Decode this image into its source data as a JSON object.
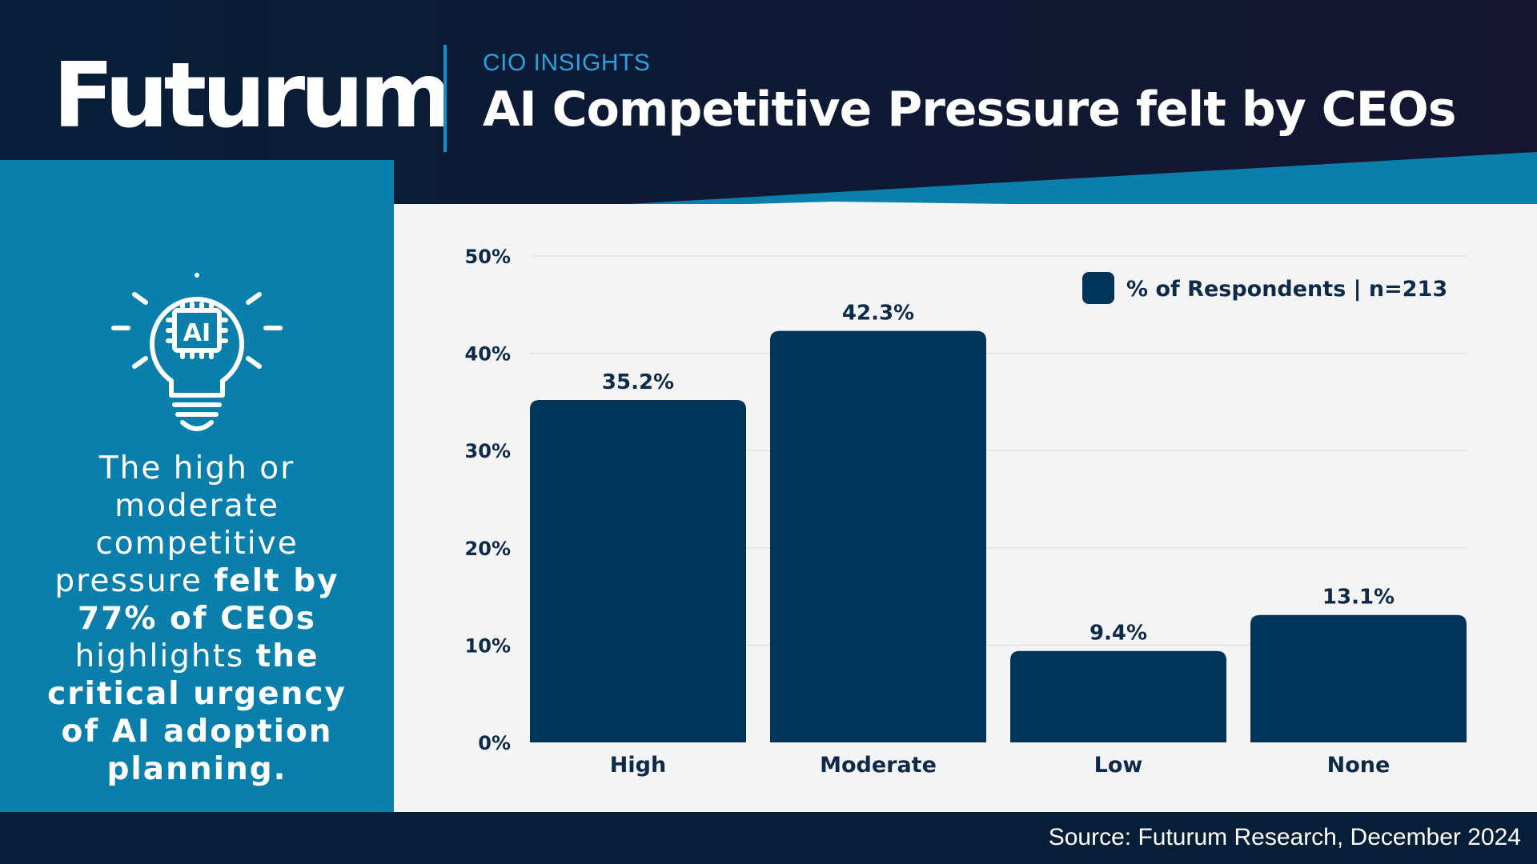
{
  "brand": {
    "logo_text": "Futurum"
  },
  "header": {
    "kicker": "CIO INSIGHTS",
    "title": "AI Competitive Pressure felt by CEOs"
  },
  "sidebar": {
    "icon": "ai-lightbulb-icon",
    "icon_text": "AI",
    "insight_parts": [
      {
        "text": "The high or moderate competitive pressure ",
        "bold": false
      },
      {
        "text": "felt by 77% of CEOs",
        "bold": true
      },
      {
        "text": " highlights ",
        "bold": false
      },
      {
        "text": "the critical urgency of AI adoption planning.",
        "bold": true
      }
    ]
  },
  "colors": {
    "bar": "#003459",
    "header_bg": "#131a33",
    "accent_blue": "#0b7fab",
    "chart_bg": "#f4f4f4",
    "footer_bg": "#071e38"
  },
  "chart_data": {
    "type": "bar",
    "categories": [
      "High",
      "Moderate",
      "Low",
      "None"
    ],
    "series": [
      {
        "name": "% of Respondents | n=213",
        "values": [
          35.2,
          42.3,
          9.4,
          13.1
        ]
      }
    ],
    "value_labels": [
      "35.2%",
      "42.3%",
      "9.4%",
      "13.1%"
    ],
    "ylim": [
      0,
      50
    ],
    "yticks": [
      0,
      10,
      20,
      30,
      40,
      50
    ],
    "ytick_labels": [
      "0%",
      "10%",
      "20%",
      "30%",
      "40%",
      "50%"
    ],
    "grid": true,
    "legend_position": "top-right"
  },
  "footer": {
    "source": "Source: Futurum Research, December 2024"
  }
}
